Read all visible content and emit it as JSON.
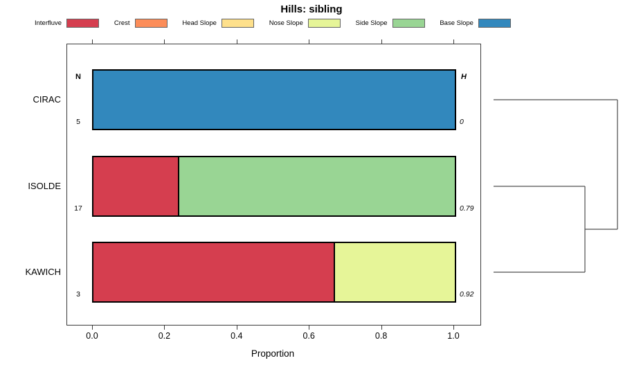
{
  "title": "Hills: sibling",
  "legend": {
    "items": [
      {
        "label": "Interfluve",
        "color": "#d53e4f"
      },
      {
        "label": "Crest",
        "color": "#fc8d59"
      },
      {
        "label": "Head Slope",
        "color": "#fee08b"
      },
      {
        "label": "Nose Slope",
        "color": "#e6f598"
      },
      {
        "label": "Side Slope",
        "color": "#99d594"
      },
      {
        "label": "Base Slope",
        "color": "#3288bd"
      }
    ]
  },
  "chart_data": {
    "type": "bar",
    "orientation": "horizontal",
    "stacked": true,
    "title": "Hills: sibling",
    "xlabel": "Proportion",
    "xlim": [
      0,
      1
    ],
    "x_ticks": [
      0,
      0.2,
      0.4,
      0.6,
      0.8,
      1
    ],
    "x_tick_labels": [
      "0.0",
      "0.2",
      "0.4",
      "0.6",
      "0.8",
      "1.0"
    ],
    "grid": false,
    "legend_position": "top",
    "n_header": "N",
    "h_header": "H",
    "categories": [
      "CIRAC",
      "ISOLDE",
      "KAWICH"
    ],
    "rows": [
      {
        "category": "CIRAC",
        "n": "5",
        "h": "0",
        "segments": [
          {
            "label": "Base Slope",
            "value": 1.0
          }
        ]
      },
      {
        "category": "ISOLDE",
        "n": "17",
        "h": "0.79",
        "segments": [
          {
            "label": "Interfluve",
            "value": 0.235
          },
          {
            "label": "Side Slope",
            "value": 0.765
          }
        ]
      },
      {
        "category": "KAWICH",
        "n": "3",
        "h": "0.92",
        "segments": [
          {
            "label": "Interfluve",
            "value": 0.667
          },
          {
            "label": "Nose Slope",
            "value": 0.333
          }
        ]
      }
    ]
  },
  "dendrogram": {
    "leaves": [
      "CIRAC",
      "ISOLDE",
      "KAWICH"
    ],
    "merges": [
      {
        "members": [
          "ISOLDE",
          "KAWICH"
        ]
      },
      {
        "members": [
          "CIRAC",
          "ISOLDE+KAWICH"
        ]
      }
    ],
    "line_color": "#4d4d4d"
  },
  "colors": {
    "bar_border": "#000000",
    "axis": "#3a3a3a",
    "background": "#ffffff"
  }
}
